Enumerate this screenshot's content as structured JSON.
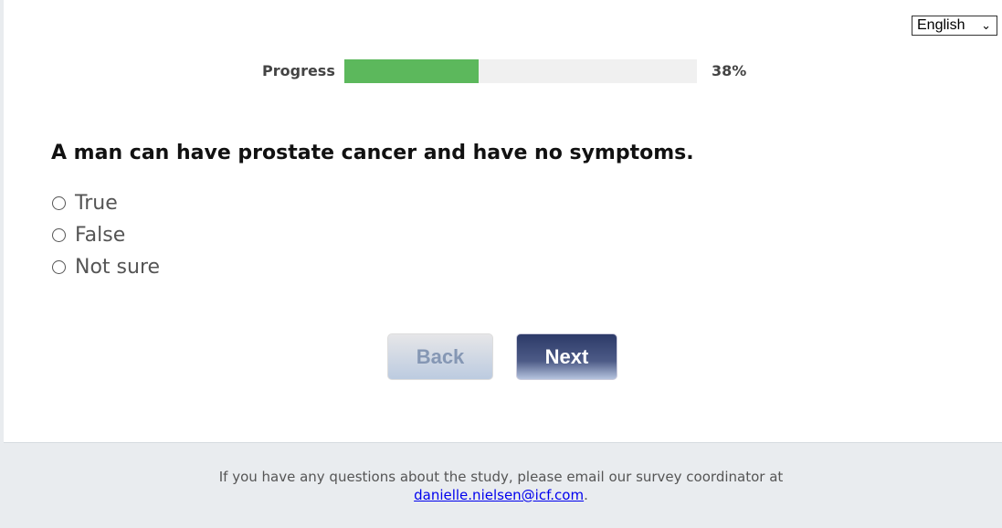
{
  "language": {
    "selected": "English"
  },
  "progress": {
    "label": "Progress",
    "percent": 38,
    "text": "38%",
    "color": "#5cb85c"
  },
  "question": {
    "text": "A man can have prostate cancer and have no symptoms.",
    "options": [
      {
        "label": "True",
        "selected": false
      },
      {
        "label": "False",
        "selected": false
      },
      {
        "label": "Not sure",
        "selected": false
      }
    ]
  },
  "buttons": {
    "back": "Back",
    "next": "Next"
  },
  "footer": {
    "text": "If you have any questions about the study, please email our survey coordinator at",
    "email": "danielle.nielsen@icf.com",
    "period": "."
  }
}
